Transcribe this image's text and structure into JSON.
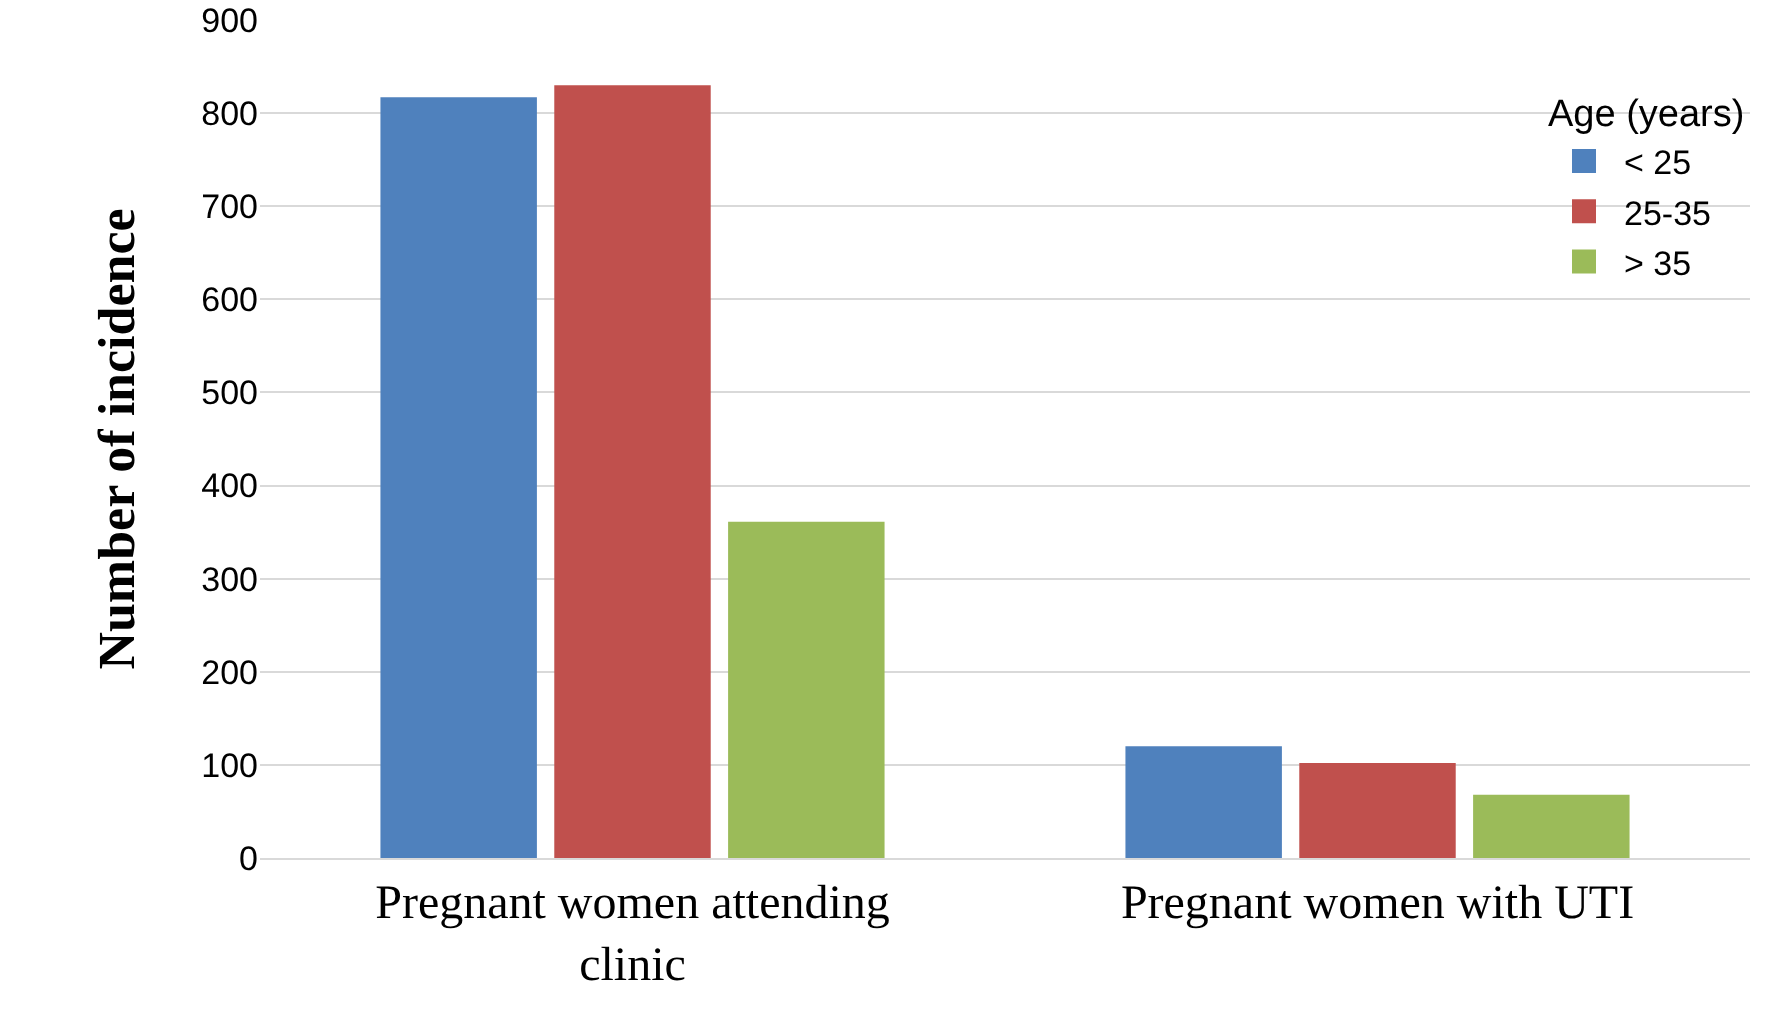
{
  "chart_data": {
    "type": "bar",
    "ylabel": "Number of incidence",
    "legend_title": "Age (years)",
    "categories": [
      "Pregnant women attending clinic",
      "Pregnant women with UTI"
    ],
    "series": [
      {
        "name": "< 25",
        "color": "#4f81bd",
        "values": [
          817,
          120
        ]
      },
      {
        "name": "25-35",
        "color": "#c0504d",
        "values": [
          830,
          102
        ]
      },
      {
        "name": "> 35",
        "color": "#9bbb59",
        "values": [
          361,
          68
        ]
      }
    ],
    "ylim": [
      0,
      900
    ],
    "yticks": [
      0,
      100,
      200,
      300,
      400,
      500,
      600,
      700,
      800,
      900
    ],
    "grid": "y",
    "legend": "right"
  }
}
